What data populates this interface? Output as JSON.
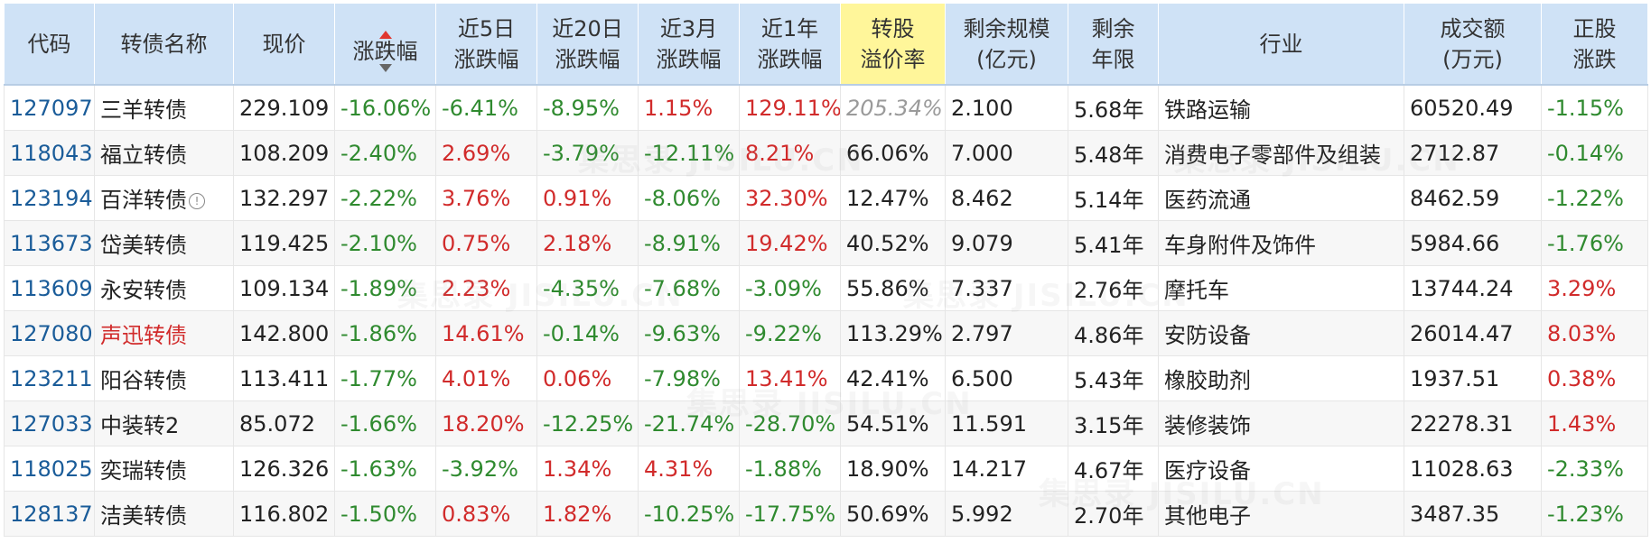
{
  "table": {
    "headers": {
      "code": "代码",
      "name": "转债名称",
      "price": "现价",
      "change": "涨跌幅",
      "chg5d_l1": "近5日",
      "chg5d_l2": "涨跌幅",
      "chg20d_l1": "近20日",
      "chg20d_l2": "涨跌幅",
      "chg3m_l1": "近3月",
      "chg3m_l2": "涨跌幅",
      "chg1y_l1": "近1年",
      "chg1y_l2": "涨跌幅",
      "premium_l1": "转股",
      "premium_l2": "溢价率",
      "remain_size_l1": "剩余规模",
      "remain_size_l2": "(亿元)",
      "remain_years_l1": "剩余",
      "remain_years_l2": "年限",
      "industry": "行业",
      "turnover_l1": "成交额",
      "turnover_l2": "(万元)",
      "stock_chg_l1": "正股",
      "stock_chg_l2": "涨跌"
    },
    "rows": [
      {
        "code": "127097",
        "name": "三羊转债",
        "price": "229.109",
        "change": "-16.06%",
        "chg5d": "-6.41%",
        "chg20d": "-8.95%",
        "chg3m": "1.15%",
        "chg1y": "129.11%",
        "premium": "205.34%",
        "size": "2.100",
        "years": "5.68年",
        "industry": "铁路运输",
        "turnover": "60520.49",
        "stock_chg": "-1.15%"
      },
      {
        "code": "118043",
        "name": "福立转债",
        "price": "108.209",
        "change": "-2.40%",
        "chg5d": "2.69%",
        "chg20d": "-3.79%",
        "chg3m": "-12.11%",
        "chg1y": "8.21%",
        "premium": "66.06%",
        "size": "7.000",
        "years": "5.48年",
        "industry": "消费电子零部件及组装",
        "turnover": "2712.87",
        "stock_chg": "-0.14%"
      },
      {
        "code": "123194",
        "name": "百洋转债",
        "price": "132.297",
        "change": "-2.22%",
        "chg5d": "3.76%",
        "chg20d": "0.91%",
        "chg3m": "-8.06%",
        "chg1y": "32.30%",
        "premium": "12.47%",
        "size": "8.462",
        "years": "5.14年",
        "industry": "医药流通",
        "turnover": "8462.59",
        "stock_chg": "-1.22%"
      },
      {
        "code": "113673",
        "name": "岱美转债",
        "price": "119.425",
        "change": "-2.10%",
        "chg5d": "0.75%",
        "chg20d": "2.18%",
        "chg3m": "-8.91%",
        "chg1y": "19.42%",
        "premium": "40.52%",
        "size": "9.079",
        "years": "5.41年",
        "industry": "车身附件及饰件",
        "turnover": "5984.66",
        "stock_chg": "-1.76%"
      },
      {
        "code": "113609",
        "name": "永安转债",
        "price": "109.134",
        "change": "-1.89%",
        "chg5d": "2.23%",
        "chg20d": "-4.35%",
        "chg3m": "-7.68%",
        "chg1y": "-3.09%",
        "premium": "55.86%",
        "size": "7.337",
        "years": "2.76年",
        "industry": "摩托车",
        "turnover": "13744.24",
        "stock_chg": "3.29%"
      },
      {
        "code": "127080",
        "name": "声迅转债",
        "price": "142.800",
        "change": "-1.86%",
        "chg5d": "14.61%",
        "chg20d": "-0.14%",
        "chg3m": "-9.63%",
        "chg1y": "-9.22%",
        "premium": "113.29%",
        "size": "2.797",
        "years": "4.86年",
        "industry": "安防设备",
        "turnover": "26014.47",
        "stock_chg": "8.03%"
      },
      {
        "code": "123211",
        "name": "阳谷转债",
        "price": "113.411",
        "change": "-1.77%",
        "chg5d": "4.01%",
        "chg20d": "0.06%",
        "chg3m": "-7.98%",
        "chg1y": "13.41%",
        "premium": "42.41%",
        "size": "6.500",
        "years": "5.43年",
        "industry": "橡胶助剂",
        "turnover": "1937.51",
        "stock_chg": "0.38%"
      },
      {
        "code": "127033",
        "name": "中装转2",
        "price": "85.072",
        "change": "-1.66%",
        "chg5d": "18.20%",
        "chg20d": "-12.25%",
        "chg3m": "-21.74%",
        "chg1y": "-28.70%",
        "premium": "54.51%",
        "size": "11.591",
        "years": "3.15年",
        "industry": "装修装饰",
        "turnover": "22278.31",
        "stock_chg": "1.43%"
      },
      {
        "code": "118025",
        "name": "奕瑞转债",
        "price": "126.326",
        "change": "-1.63%",
        "chg5d": "-3.92%",
        "chg20d": "1.34%",
        "chg3m": "4.31%",
        "chg1y": "-1.88%",
        "premium": "18.90%",
        "size": "14.217",
        "years": "4.67年",
        "industry": "医疗设备",
        "turnover": "11028.63",
        "stock_chg": "-2.33%"
      },
      {
        "code": "128137",
        "name": "洁美转债",
        "price": "116.802",
        "change": "-1.50%",
        "chg5d": "0.83%",
        "chg20d": "1.82%",
        "chg3m": "-10.25%",
        "chg1y": "-17.75%",
        "premium": "50.69%",
        "size": "5.992",
        "years": "2.70年",
        "industry": "其他电子",
        "turnover": "3487.35",
        "stock_chg": "-1.23%"
      }
    ]
  },
  "watermark_text": "集思录 JISILU.CN",
  "colors": {
    "header_bg": "#cfe2f6",
    "highlight_header_bg": "#fff69a",
    "up": "#d12b2b",
    "down": "#2f8a2f",
    "link": "#1a5c99"
  }
}
